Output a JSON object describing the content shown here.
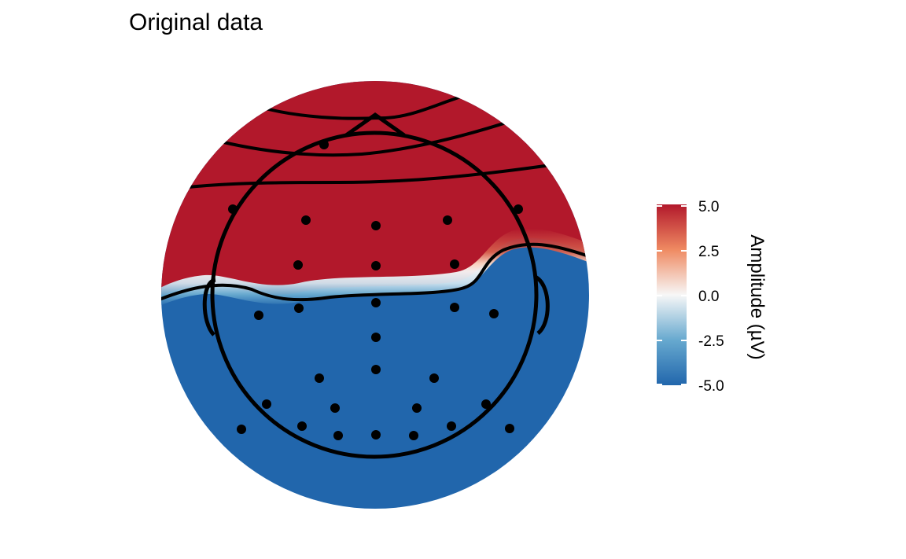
{
  "chart_data": {
    "type": "heatmap",
    "title": "Original data",
    "legend": {
      "title": "Amplitude (µV)",
      "placement": "right",
      "range": [
        -5.0,
        5.0
      ],
      "ticks": [
        "5.0",
        "2.5",
        "0.0",
        "-2.5",
        "-5.0"
      ],
      "colors": {
        "high": "#b2182b",
        "mid": "#f7f7f7",
        "low": "#2166ac"
      }
    },
    "field": {
      "description_values": "topographic scalp map: positive (+5 µV) over frontal area, negative (-5 µV) over central/posterior area",
      "max": 5.0,
      "min": -5.0
    },
    "electrodes_count": 30
  }
}
